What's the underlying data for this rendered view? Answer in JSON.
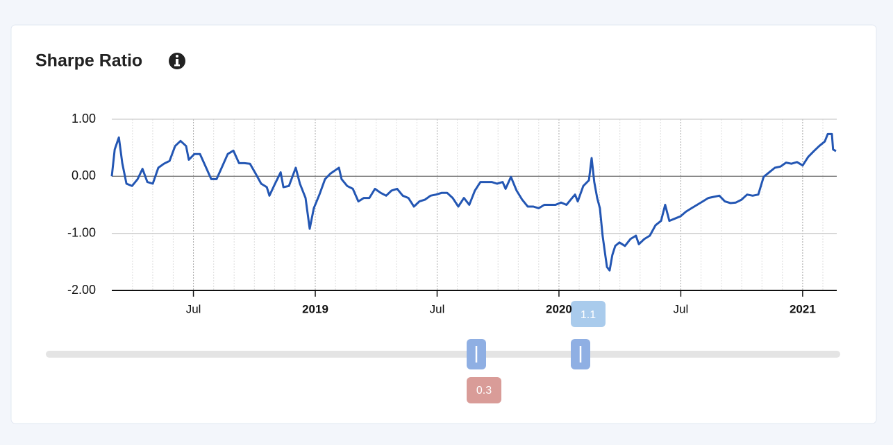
{
  "chart_data": {
    "type": "line",
    "title": "Sharpe Ratio",
    "color": "#2356b3",
    "x": [
      2018.165,
      2018.177,
      2018.194,
      2018.208,
      2018.225,
      2018.248,
      2018.271,
      2018.291,
      2018.311,
      2018.333,
      2018.356,
      2018.379,
      2018.402,
      2018.425,
      2018.447,
      2018.47,
      2018.481,
      2018.504,
      2018.527,
      2018.55,
      2018.573,
      2018.595,
      2018.618,
      2018.641,
      2018.664,
      2018.687,
      2018.709,
      2018.732,
      2018.755,
      2018.778,
      2018.801,
      2018.812,
      2018.835,
      2018.858,
      2018.869,
      2018.892,
      2018.92,
      2018.937,
      2018.96,
      2018.977,
      2018.994,
      2019.017,
      2019.04,
      2019.063,
      2019.097,
      2019.108,
      2019.131,
      2019.154,
      2019.177,
      2019.199,
      2019.222,
      2019.245,
      2019.268,
      2019.291,
      2019.313,
      2019.336,
      2019.359,
      2019.382,
      2019.405,
      2019.427,
      2019.45,
      2019.473,
      2019.496,
      2019.519,
      2019.541,
      2019.564,
      2019.587,
      2019.61,
      2019.632,
      2019.655,
      2019.678,
      2019.701,
      2019.724,
      2019.746,
      2019.769,
      2019.781,
      2019.803,
      2019.826,
      2019.849,
      2019.872,
      2019.895,
      2019.917,
      2019.94,
      2019.963,
      2019.986,
      2020.009,
      2020.031,
      2020.054,
      2020.066,
      2020.077,
      2020.1,
      2020.123,
      2020.134,
      2020.145,
      2020.157,
      2020.168,
      2020.179,
      2020.191,
      2020.197,
      2020.208,
      2020.219,
      2020.231,
      2020.248,
      2020.271,
      2020.293,
      2020.316,
      2020.328,
      2020.35,
      2020.373,
      2020.396,
      2020.419,
      2020.436,
      2020.453,
      2020.476,
      2020.499,
      2020.521,
      2020.544,
      2020.567,
      2020.59,
      2020.613,
      2020.635,
      2020.658,
      2020.681,
      2020.704,
      2020.726,
      2020.749,
      2020.772,
      2020.795,
      2020.818,
      2020.84,
      2020.863,
      2020.886,
      2020.909,
      2020.932,
      2020.954,
      2020.977,
      2021.0,
      2021.023,
      2021.046,
      2021.068,
      2021.091,
      2021.103,
      2021.12,
      2021.125,
      2021.137
    ],
    "values": [
      0,
      0.47,
      0.68,
      0.23,
      -0.13,
      -0.17,
      -0.05,
      0.13,
      -0.1,
      -0.13,
      0.15,
      0.22,
      0.27,
      0.53,
      0.62,
      0.53,
      0.29,
      0.39,
      0.39,
      0.17,
      -0.05,
      -0.05,
      0.17,
      0.39,
      0.45,
      0.23,
      0.23,
      0.22,
      0.05,
      -0.13,
      -0.19,
      -0.34,
      -0.13,
      0.07,
      -0.19,
      -0.17,
      0.15,
      -0.13,
      -0.38,
      -0.92,
      -0.56,
      -0.32,
      -0.05,
      0.05,
      0.15,
      -0.05,
      -0.17,
      -0.22,
      -0.44,
      -0.38,
      -0.38,
      -0.22,
      -0.29,
      -0.34,
      -0.25,
      -0.22,
      -0.34,
      -0.38,
      -0.53,
      -0.44,
      -0.41,
      -0.34,
      -0.32,
      -0.29,
      -0.29,
      -0.38,
      -0.53,
      -0.38,
      -0.5,
      -0.25,
      -0.1,
      -0.1,
      -0.1,
      -0.13,
      -0.1,
      -0.22,
      -0.01,
      -0.25,
      -0.41,
      -0.53,
      -0.53,
      -0.56,
      -0.5,
      -0.5,
      -0.5,
      -0.46,
      -0.5,
      -0.38,
      -0.32,
      -0.44,
      -0.17,
      -0.07,
      0.32,
      -0.1,
      -0.38,
      -0.56,
      -1.04,
      -1.41,
      -1.59,
      -1.65,
      -1.38,
      -1.22,
      -1.16,
      -1.22,
      -1.1,
      -1.04,
      -1.19,
      -1.1,
      -1.04,
      -0.86,
      -0.78,
      -0.5,
      -0.78,
      -0.74,
      -0.7,
      -0.62,
      -0.56,
      -0.5,
      -0.44,
      -0.38,
      -0.36,
      -0.34,
      -0.44,
      -0.47,
      -0.46,
      -0.41,
      -0.32,
      -0.34,
      -0.32,
      -0.01,
      0.07,
      0.15,
      0.17,
      0.24,
      0.22,
      0.25,
      0.19,
      0.34,
      0.44,
      0.53,
      0.61,
      0.74,
      0.74,
      0.47,
      0.44
    ],
    "xlim": [
      2018.165,
      2021.14
    ],
    "xticks": [
      {
        "value": 2018.5,
        "label": "Jul"
      },
      2019,
      {
        "value": 2019.5,
        "label": "Jul"
      },
      2020,
      {
        "value": 2020.5,
        "label": "Jul"
      },
      2021
    ],
    "xminorticks": [
      2018.25,
      2018.333,
      2018.417,
      2018.5,
      2018.583,
      2018.667,
      2018.75,
      2018.833,
      2018.917,
      2019,
      2019.083,
      2019.167,
      2019.25,
      2019.333,
      2019.417,
      2019.5,
      2019.583,
      2019.667,
      2019.75,
      2019.833,
      2019.917,
      2020,
      2020.083,
      2020.167,
      2020.25,
      2020.333,
      2020.417,
      2020.5,
      2020.583,
      2020.667,
      2020.75,
      2020.833,
      2020.917,
      2021,
      2021.083
    ],
    "ylim": [
      -2,
      1
    ],
    "yticks": [
      {
        "value": -2,
        "label": "-2.00"
      },
      {
        "value": -1,
        "label": "-1.00"
      },
      {
        "value": 0,
        "label": "0.00"
      },
      {
        "value": 1,
        "label": "1.00"
      }
    ],
    "grid": true
  },
  "slider": {
    "low": 0.3,
    "high": 1.1
  }
}
